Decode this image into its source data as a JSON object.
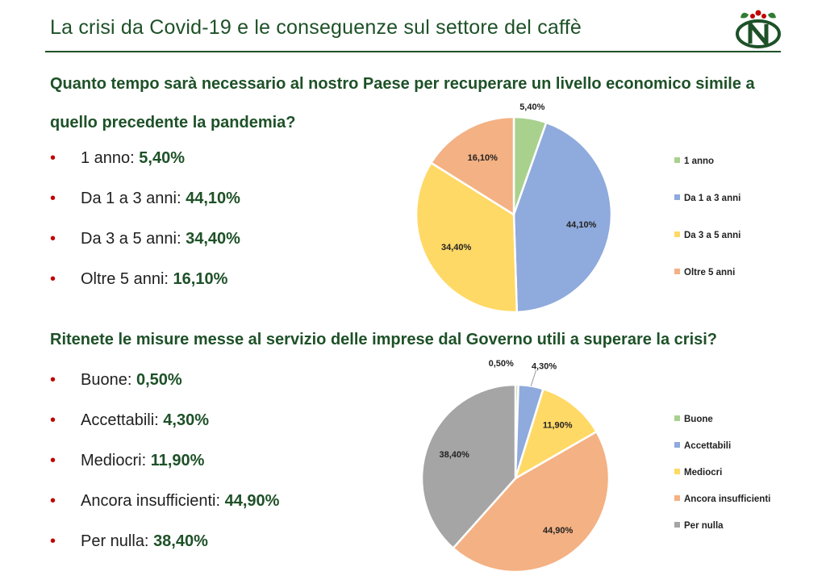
{
  "header": {
    "title": "La crisi da Covid-19 e le conseguenze sul settore del caffè"
  },
  "colors": {
    "brand_green": "#1e5128",
    "bullet_red": "#c00000"
  },
  "section1": {
    "question": "Quanto tempo sarà necessario al nostro Paese per recuperare un livello economico simile a quello precedente la pandemia?",
    "answers": [
      {
        "label": "1 anno: ",
        "value": "5,40%"
      },
      {
        "label": "Da 1 a 3 anni: ",
        "value": "44,10%"
      },
      {
        "label": "Da 3 a 5 anni: ",
        "value": "34,40%"
      },
      {
        "label": "Oltre 5 anni: ",
        "value": "16,10%"
      }
    ]
  },
  "section2": {
    "question": "Ritenete le misure messe al servizio delle imprese dal Governo utili a superare la crisi?",
    "answers": [
      {
        "label": "Buone: ",
        "value": "0,50%"
      },
      {
        "label": "Accettabili: ",
        "value": "4,30%"
      },
      {
        "label": "Mediocri: ",
        "value": "11,90%"
      },
      {
        "label": "Ancora insufficienti: ",
        "value": "44,90%"
      },
      {
        "label": "Per nulla: ",
        "value": "38,40%"
      }
    ]
  },
  "chart_data": [
    {
      "type": "pie",
      "title": "",
      "legend_position": "right",
      "categories": [
        "1 anno",
        "Da 1 a 3 anni",
        "Da 3 a 5 anni",
        "Oltre 5 anni"
      ],
      "values": [
        5.4,
        44.1,
        34.4,
        16.1
      ],
      "data_labels": [
        "5,40%",
        "44,10%",
        "34,40%",
        "16,10%"
      ],
      "colors": [
        "#a9d18e",
        "#8faadc",
        "#ffd966",
        "#f4b183"
      ]
    },
    {
      "type": "pie",
      "title": "",
      "legend_position": "right",
      "categories": [
        "Buone",
        "Accettabili",
        "Mediocri",
        "Ancora insufficienti",
        "Per nulla"
      ],
      "values": [
        0.5,
        4.3,
        11.9,
        44.9,
        38.4
      ],
      "data_labels": [
        "0,50%",
        "4,30%",
        "11,90%",
        "44,90%",
        "38,40%"
      ],
      "colors": [
        "#a9d18e",
        "#8faadc",
        "#ffd966",
        "#f4b183",
        "#a5a5a5"
      ]
    }
  ]
}
